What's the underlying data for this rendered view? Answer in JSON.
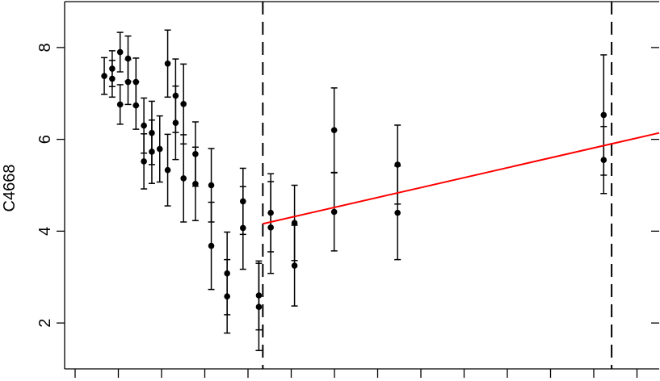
{
  "chart_data": {
    "type": "scatter",
    "title": "",
    "xlabel": "",
    "ylabel": "C4668",
    "ylim": [
      1.0,
      9.0
    ],
    "y_ticks": [
      2,
      4,
      6,
      8
    ],
    "y_tick_labels": [
      "2",
      "4",
      "6",
      "8"
    ],
    "x_tick_count": 14,
    "grid": false,
    "colors": {
      "points": "#000000",
      "fit_line": "#ff0000",
      "reference_lines": "#000000"
    },
    "points": [
      {
        "x": 1.0,
        "y": 7.38,
        "ylow": 6.98,
        "yhigh": 7.78
      },
      {
        "x": 2.0,
        "y": 7.54,
        "ylow": 7.15,
        "yhigh": 7.93
      },
      {
        "x": 2.0,
        "y": 7.32,
        "ylow": 6.92,
        "yhigh": 7.72
      },
      {
        "x": 3.0,
        "y": 7.9,
        "ylow": 7.47,
        "yhigh": 8.33
      },
      {
        "x": 3.0,
        "y": 6.76,
        "ylow": 6.33,
        "yhigh": 7.19
      },
      {
        "x": 4.0,
        "y": 7.76,
        "ylow": 7.27,
        "yhigh": 8.25
      },
      {
        "x": 4.0,
        "y": 7.25,
        "ylow": 6.76,
        "yhigh": 7.74
      },
      {
        "x": 5.0,
        "y": 7.25,
        "ylow": 6.73,
        "yhigh": 7.77
      },
      {
        "x": 5.0,
        "y": 6.74,
        "ylow": 6.22,
        "yhigh": 7.26
      },
      {
        "x": 6.0,
        "y": 6.3,
        "ylow": 5.7,
        "yhigh": 6.9
      },
      {
        "x": 6.0,
        "y": 5.52,
        "ylow": 4.92,
        "yhigh": 6.12
      },
      {
        "x": 7.0,
        "y": 6.14,
        "ylow": 5.45,
        "yhigh": 6.83
      },
      {
        "x": 7.0,
        "y": 5.73,
        "ylow": 5.04,
        "yhigh": 6.42
      },
      {
        "x": 8.0,
        "y": 5.79,
        "ylow": 5.07,
        "yhigh": 6.51
      },
      {
        "x": 9.0,
        "y": 7.65,
        "ylow": 6.92,
        "yhigh": 8.38
      },
      {
        "x": 9.0,
        "y": 5.33,
        "ylow": 4.55,
        "yhigh": 6.11
      },
      {
        "x": 10.0,
        "y": 6.95,
        "ylow": 6.15,
        "yhigh": 7.75
      },
      {
        "x": 10.0,
        "y": 6.36,
        "ylow": 5.56,
        "yhigh": 7.16
      },
      {
        "x": 11.0,
        "y": 6.77,
        "ylow": 5.9,
        "yhigh": 7.64
      },
      {
        "x": 11.0,
        "y": 5.15,
        "ylow": 4.2,
        "yhigh": 6.1
      },
      {
        "x": 12.5,
        "y": 5.68,
        "ylow": 4.98,
        "yhigh": 6.38
      },
      {
        "x": 12.5,
        "y": 5.03,
        "ylow": 4.23,
        "yhigh": 5.83
      },
      {
        "x": 14.5,
        "y": 5.0,
        "ylow": 4.2,
        "yhigh": 5.8
      },
      {
        "x": 14.5,
        "y": 3.68,
        "ylow": 2.73,
        "yhigh": 4.63
      },
      {
        "x": 16.5,
        "y": 3.08,
        "ylow": 2.18,
        "yhigh": 3.98
      },
      {
        "x": 16.5,
        "y": 2.58,
        "ylow": 1.78,
        "yhigh": 3.38
      },
      {
        "x": 18.5,
        "y": 4.65,
        "ylow": 3.93,
        "yhigh": 5.37
      },
      {
        "x": 18.5,
        "y": 4.07,
        "ylow": 3.17,
        "yhigh": 4.97
      },
      {
        "x": 20.5,
        "y": 2.6,
        "ylow": 1.85,
        "yhigh": 3.35
      },
      {
        "x": 20.5,
        "y": 2.35,
        "ylow": 1.4,
        "yhigh": 3.3
      },
      {
        "x": 22.0,
        "y": 4.4,
        "ylow": 3.55,
        "yhigh": 5.25
      },
      {
        "x": 22.0,
        "y": 4.08,
        "ylow": 3.08,
        "yhigh": 5.08
      },
      {
        "x": 25.0,
        "y": 4.18,
        "ylow": 3.36,
        "yhigh": 5.0
      },
      {
        "x": 25.0,
        "y": 3.25,
        "ylow": 2.37,
        "yhigh": 4.13
      },
      {
        "x": 30.0,
        "y": 6.2,
        "ylow": 5.28,
        "yhigh": 7.12
      },
      {
        "x": 30.0,
        "y": 4.42,
        "ylow": 3.57,
        "yhigh": 5.27
      },
      {
        "x": 38.0,
        "y": 5.45,
        "ylow": 4.59,
        "yhigh": 6.31
      },
      {
        "x": 38.0,
        "y": 4.4,
        "ylow": 3.38,
        "yhigh": 5.42
      },
      {
        "x": 64.0,
        "y": 6.53,
        "ylow": 5.22,
        "yhigh": 7.84
      },
      {
        "x": 64.0,
        "y": 5.55,
        "ylow": 4.82,
        "yhigh": 6.28
      }
    ],
    "fit_line": {
      "x": [
        21.0,
        71.0
      ],
      "y": [
        4.16,
        6.14
      ]
    },
    "reference_lines_x": [
      21.0,
      65.0
    ],
    "xlim": [
      -4.0,
      71.0
    ]
  }
}
